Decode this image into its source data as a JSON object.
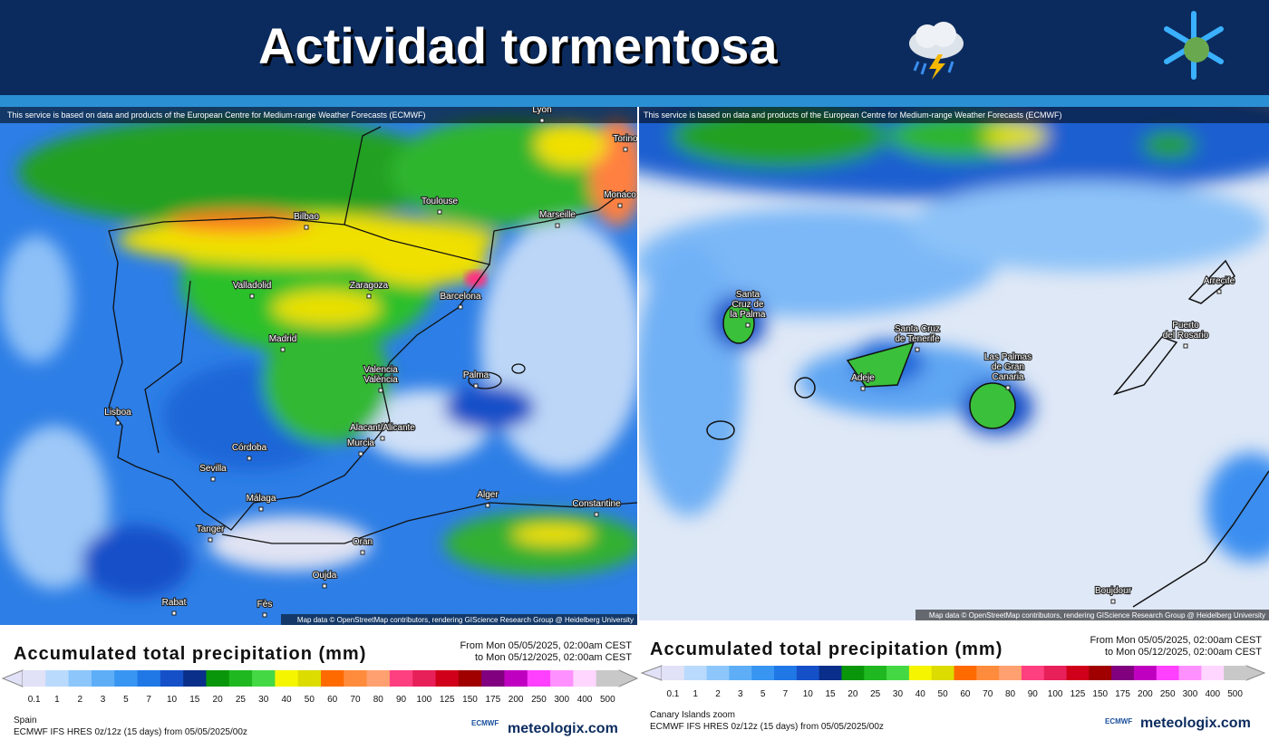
{
  "header": {
    "title": "Actividad tormentosa"
  },
  "notice": "This service is based on data and products of the European Centre for Medium-range Weather Forecasts (ECMWF)",
  "attribution": "Map data © OpenStreetMap contributors, rendering GIScience Research Group @ Heidelberg University",
  "colorbar": {
    "ticks": [
      0.1,
      1,
      2,
      3,
      5,
      7,
      10,
      15,
      20,
      25,
      30,
      40,
      50,
      60,
      70,
      80,
      90,
      100,
      125,
      150,
      175,
      200,
      250,
      300,
      400,
      500
    ],
    "colors": [
      "#e1e1f7",
      "#b9dafc",
      "#8cc6fb",
      "#5eaef7",
      "#3896f2",
      "#2078e6",
      "#1550c8",
      "#0a2f8a",
      "#0a960a",
      "#20b820",
      "#44d844",
      "#f5f500",
      "#dcdc00",
      "#ff6a00",
      "#ff8c3c",
      "#ffa070",
      "#ff4080",
      "#e8205a",
      "#d0001a",
      "#a00000",
      "#800080",
      "#c000c0",
      "#ff40ff",
      "#ff90ff",
      "#ffd6ff",
      "#c8c8c8"
    ]
  },
  "panels": [
    {
      "legend_title": "Accumulated total precipitation (mm)",
      "period": [
        "From Mon 05/05/2025, 02:00am CEST",
        "to Mon 05/12/2025, 02:00am CEST"
      ],
      "region": "Spain",
      "model": "ECMWF IFS HRES 0z/12z (15 days) from 05/05/2025/00z",
      "cities": [
        [
          "Lyon"
        ],
        [
          "Torino"
        ],
        [
          "Toulouse"
        ],
        [
          "Monaco"
        ],
        [
          "Bilbao"
        ],
        [
          "Marseille"
        ],
        [
          "Valladolid"
        ],
        [
          "Zaragoza"
        ],
        [
          "Barcelona"
        ],
        [
          "Madrid"
        ],
        [
          "Lisboa"
        ],
        [
          "Valencia",
          "València"
        ],
        [
          "Palma"
        ],
        [
          "Alacant/Alicante"
        ],
        [
          "Murcia"
        ],
        [
          "Córdoba"
        ],
        [
          "Sevilla"
        ],
        [
          "Málaga"
        ],
        [
          "Tanger"
        ],
        [
          "Alger"
        ],
        [
          "Constantine"
        ],
        [
          "Oran"
        ],
        [
          "Oujda"
        ],
        [
          "Rabat"
        ],
        [
          "Fès"
        ]
      ]
    },
    {
      "legend_title": "Accumulated total precipitation (mm)",
      "period": [
        "From Mon 05/05/2025, 02:00am CEST",
        "to Mon 05/12/2025, 02:00am CEST"
      ],
      "region": "Canary Islands zoom",
      "model": "ECMWF IFS HRES 0z/12z (15 days) from 05/05/2025/00z",
      "cities": [
        [
          "Santa",
          "Cruz de",
          "la Palma"
        ],
        [
          "Santa Cruz",
          "de Tenerife"
        ],
        [
          "Adeje"
        ],
        [
          "Las Palmas",
          "de Gran",
          "Canaria"
        ],
        [
          "Arrecife"
        ],
        [
          "Puerto",
          "del Rosario"
        ],
        [
          "Boujdour"
        ]
      ]
    }
  ],
  "brand": {
    "ecmwf": "ECMWF",
    "site": "meteologix.com"
  }
}
